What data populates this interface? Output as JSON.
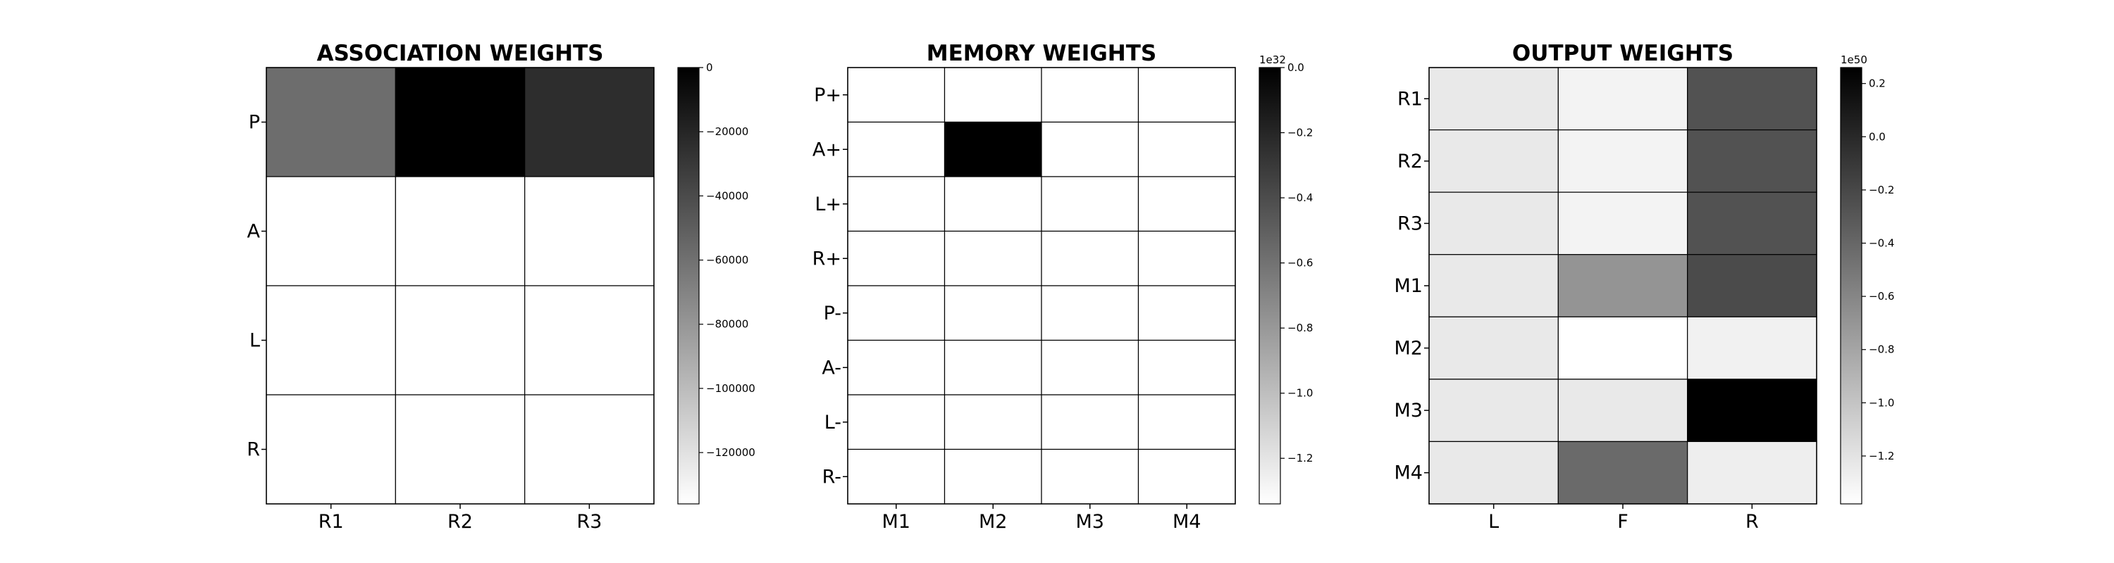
{
  "chart_data": [
    {
      "type": "heatmap",
      "title": "ASSOCIATION WEIGHTS",
      "cmap": "gray",
      "row_labels": [
        "P",
        "A",
        "L",
        "R"
      ],
      "col_labels": [
        "R1",
        "R2",
        "R3"
      ],
      "values": [
        [
          -78000,
          -136000,
          -112000
        ],
        [
          0,
          0,
          0
        ],
        [
          0,
          0,
          0
        ],
        [
          0,
          0,
          0
        ]
      ],
      "colorbar": {
        "vmin": -136000,
        "vmax": 0,
        "exponent_label": "",
        "ticks": [
          0,
          -20000,
          -40000,
          -60000,
          -80000,
          -100000,
          -120000
        ],
        "tick_labels": [
          "0",
          "−20000",
          "−40000",
          "−60000",
          "−80000",
          "−100000",
          "−120000"
        ]
      }
    },
    {
      "type": "heatmap",
      "title": "MEMORY WEIGHTS",
      "cmap": "gray",
      "row_labels": [
        "P+",
        "A+",
        "L+",
        "R+",
        "P-",
        "A-",
        "L-",
        "R-"
      ],
      "col_labels": [
        "M1",
        "M2",
        "M3",
        "M4"
      ],
      "values": [
        [
          0,
          0,
          0,
          0
        ],
        [
          0,
          -1.34,
          0,
          0
        ],
        [
          0,
          0,
          0,
          0
        ],
        [
          0,
          0,
          0,
          0
        ],
        [
          0,
          0,
          0,
          0
        ],
        [
          0,
          0,
          0,
          0
        ],
        [
          0,
          0,
          0,
          0
        ],
        [
          0,
          0,
          0,
          0
        ]
      ],
      "colorbar": {
        "vmin": -1.34,
        "vmax": 0,
        "exponent_label": "1e32",
        "ticks": [
          0,
          -0.2,
          -0.4,
          -0.6,
          -0.8,
          -1.0,
          -1.2
        ],
        "tick_labels": [
          "0.0",
          "−0.2",
          "−0.4",
          "−0.6",
          "−0.8",
          "−1.0",
          "−1.2"
        ]
      }
    },
    {
      "type": "heatmap",
      "title": "OUTPUT WEIGHTS",
      "cmap": "gray",
      "row_labels": [
        "R1",
        "R2",
        "R3",
        "M1",
        "M2",
        "M3",
        "M4"
      ],
      "col_labels": [
        "L",
        "F",
        "R"
      ],
      "values": [
        [
          0.12,
          0.18,
          -0.85
        ],
        [
          0.12,
          0.18,
          -0.85
        ],
        [
          0.12,
          0.18,
          -0.85
        ],
        [
          0.12,
          -0.43,
          -0.9
        ],
        [
          0.12,
          0.26,
          0.17
        ],
        [
          0.12,
          0.12,
          -1.38
        ],
        [
          0.12,
          -0.7,
          0.15
        ]
      ],
      "colorbar": {
        "vmin": -1.38,
        "vmax": 0.26,
        "exponent_label": "1e50",
        "ticks": [
          0.2,
          0.0,
          -0.2,
          -0.4,
          -0.6,
          -0.8,
          -1.0,
          -1.2
        ],
        "tick_labels": [
          "0.2",
          "0.0",
          "−0.2",
          "−0.4",
          "−0.6",
          "−0.8",
          "−1.0",
          "−1.2"
        ]
      }
    }
  ]
}
